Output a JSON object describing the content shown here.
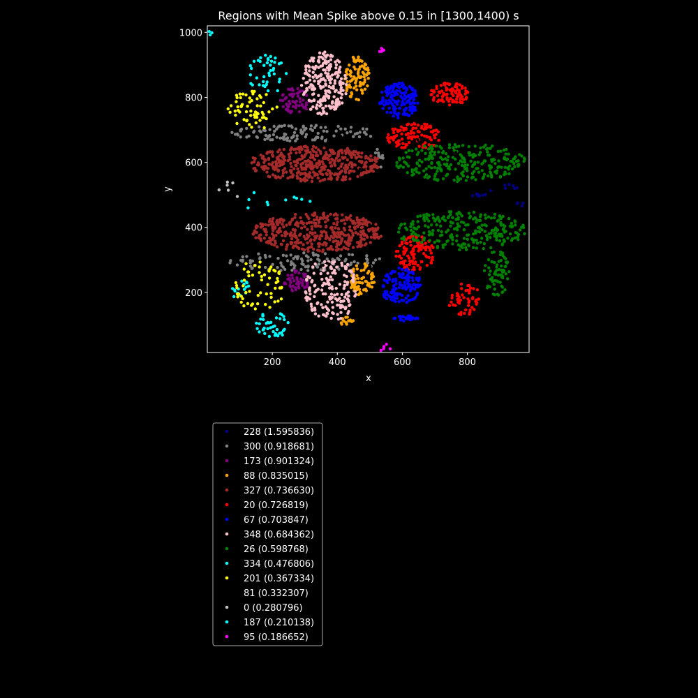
{
  "chart_data": {
    "type": "scatter",
    "title": "Regions with Mean Spike above 0.15 in [1300,1400) s",
    "xlabel": "x",
    "ylabel": "y",
    "xlim": [
      0,
      990
    ],
    "ylim": [
      15,
      1020
    ],
    "xticks": [
      200,
      400,
      600,
      800
    ],
    "yticks": [
      200,
      400,
      600,
      800,
      1000
    ],
    "grid": false,
    "legend_placement": "below plot",
    "series": [
      {
        "name": "228 (1.595836)",
        "color": "#000080",
        "clusters": [
          [
            850,
            505,
            50,
            10,
            8
          ],
          [
            920,
            525,
            40,
            8,
            6
          ],
          [
            965,
            470,
            20,
            10,
            4
          ]
        ]
      },
      {
        "name": "300 (0.918681)",
        "color": "#808080",
        "clusters": [
          [
            300,
            690,
            230,
            25,
            110
          ],
          [
            300,
            295,
            240,
            30,
            110
          ],
          [
            530,
            620,
            15,
            40,
            12
          ]
        ]
      },
      {
        "name": "173 (0.901324)",
        "color": "#800080",
        "clusters": [
          [
            270,
            790,
            45,
            40,
            60
          ],
          [
            275,
            235,
            40,
            35,
            50
          ]
        ]
      },
      {
        "name": "88 (0.835015)",
        "color": "#FFA500",
        "clusters": [
          [
            460,
            860,
            40,
            70,
            90
          ],
          [
            475,
            240,
            40,
            50,
            70
          ],
          [
            430,
            110,
            20,
            15,
            15
          ]
        ]
      },
      {
        "name": "327 (0.736630)",
        "color": "#A52A2A",
        "clusters": [
          [
            330,
            595,
            205,
            55,
            420
          ],
          [
            340,
            385,
            200,
            60,
            420
          ]
        ]
      },
      {
        "name": "20 (0.726819)",
        "color": "#FF0000",
        "clusters": [
          [
            640,
            680,
            90,
            40,
            110
          ],
          [
            745,
            810,
            60,
            35,
            90
          ],
          [
            640,
            320,
            60,
            55,
            110
          ],
          [
            790,
            180,
            50,
            50,
            50
          ]
        ]
      },
      {
        "name": "67 (0.703847)",
        "color": "#0000FF",
        "clusters": [
          [
            590,
            790,
            60,
            55,
            160
          ],
          [
            595,
            220,
            65,
            55,
            140
          ],
          [
            610,
            120,
            50,
            8,
            25
          ]
        ]
      },
      {
        "name": "348 (0.684362)",
        "color": "#FFC0CB",
        "clusters": [
          [
            360,
            840,
            70,
            100,
            220
          ],
          [
            380,
            210,
            80,
            100,
            160
          ]
        ]
      },
      {
        "name": "26 (0.598768)",
        "color": "#008000",
        "clusters": [
          [
            780,
            600,
            200,
            60,
            260
          ],
          [
            780,
            390,
            200,
            60,
            260
          ],
          [
            890,
            260,
            40,
            70,
            70
          ]
        ]
      },
      {
        "name": "334 (0.476806)",
        "color": "#00FFFF",
        "clusters": [
          [
            185,
            870,
            60,
            60,
            40
          ],
          [
            200,
            100,
            50,
            40,
            40
          ],
          [
            100,
            210,
            30,
            30,
            15
          ]
        ]
      },
      {
        "name": "201 (0.367334)",
        "color": "#FFFF00",
        "clusters": [
          [
            140,
            760,
            80,
            60,
            60
          ],
          [
            160,
            220,
            80,
            80,
            60
          ]
        ]
      },
      {
        "name": "81 (0.332307)",
        "color": "#000000",
        "clusters": [
          [
            500,
            500,
            300,
            300,
            20
          ]
        ]
      },
      {
        "name": "0 (0.280796)",
        "color": "#C0C0C0",
        "clusters": [
          [
            70,
            510,
            40,
            40,
            6
          ]
        ]
      },
      {
        "name": "187 (0.210138)",
        "color": "#00FFFF",
        "clusters": [
          [
            200,
            480,
            150,
            30,
            10
          ],
          [
            10,
            990,
            10,
            30,
            3
          ]
        ]
      },
      {
        "name": "95 (0.186652)",
        "color": "#FF00FF",
        "clusters": [
          [
            540,
            940,
            10,
            20,
            4
          ],
          [
            550,
            30,
            30,
            15,
            5
          ]
        ]
      }
    ]
  }
}
